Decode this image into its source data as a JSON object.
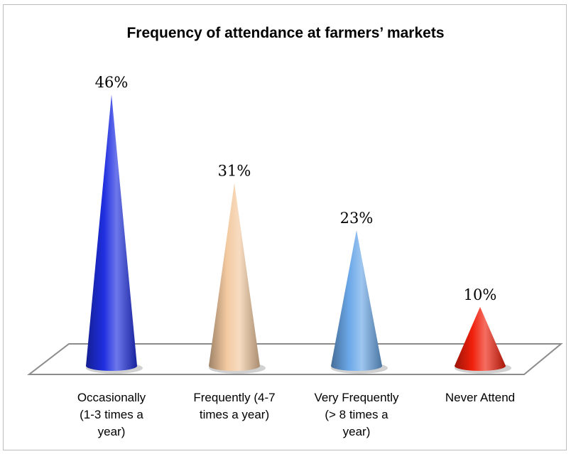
{
  "chart_data": {
    "type": "bar",
    "shape": "cone",
    "title": "Frequency of attendance at farmers’ markets",
    "categories": [
      "Occasionally (1-3 times a year)",
      "Frequently (4-7 times a year)",
      "Very Frequently (> 8 times a year)",
      "Never Attend"
    ],
    "category_label_lines": [
      [
        "Occasionally",
        "(1-3 times a",
        "year)"
      ],
      [
        "Frequently (4-7",
        "times a year)"
      ],
      [
        "Very Frequently",
        "(> 8 times a",
        "year)"
      ],
      [
        "Never Attend"
      ]
    ],
    "values": [
      46,
      31,
      23,
      10
    ],
    "data_labels": [
      "46%",
      "31%",
      "23%",
      "10%"
    ],
    "unit": "%",
    "ylim": [
      0,
      46
    ],
    "xlabel": "",
    "ylabel": "",
    "grid": false,
    "legend": "none",
    "colors": [
      "#1f2fe0",
      "#f3c9a0",
      "#6aa7e8",
      "#f0200c"
    ]
  }
}
